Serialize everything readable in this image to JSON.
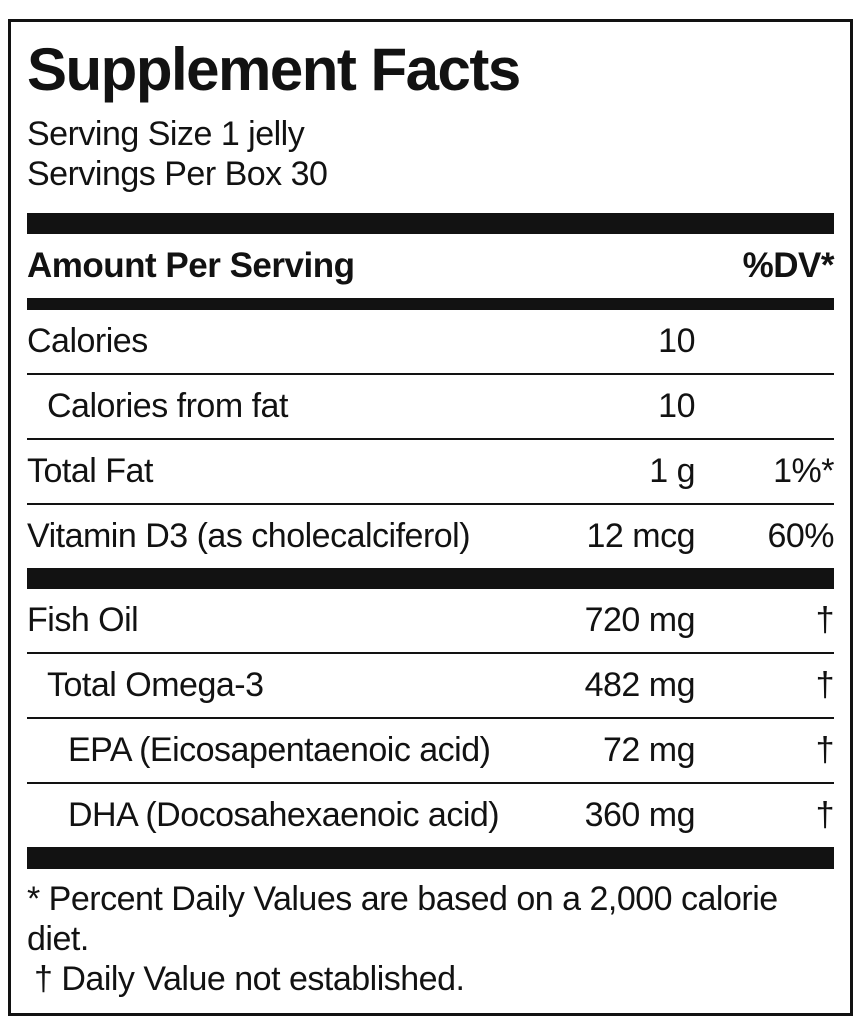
{
  "label": {
    "title": "Supplement Facts",
    "serving_size": "Serving Size 1 jelly",
    "servings_per_box": "Servings Per Box 30",
    "column_header": {
      "amount_per_serving": "Amount Per Serving",
      "percent_dv": "%DV*"
    },
    "rows": [
      {
        "name": "Calories",
        "amount": "10",
        "dv": "",
        "indent": 0
      },
      {
        "name": "Calories from fat",
        "amount": "10",
        "dv": "",
        "indent": 1
      },
      {
        "name": "Total Fat",
        "amount": "1 g",
        "dv": "1%*",
        "indent": 0
      },
      {
        "name": "Vitamin D3 (as cholecalciferol)",
        "amount": "12 mcg",
        "dv": "60%",
        "indent": 0
      },
      {
        "name": "Fish Oil",
        "amount": "720 mg",
        "dv": "†",
        "indent": 0
      },
      {
        "name": "Total Omega-3",
        "amount": "482 mg",
        "dv": "†",
        "indent": 1
      },
      {
        "name": "EPA (Eicosapentaenoic acid)",
        "amount": "72 mg",
        "dv": "†",
        "indent": 2
      },
      {
        "name": "DHA (Docosahexaenoic acid)",
        "amount": "360 mg",
        "dv": "†",
        "indent": 2
      }
    ],
    "footnotes": {
      "percent_dv": "* Percent Daily Values are based on a 2,000 calorie diet.",
      "dagger": "† Daily Value not established."
    },
    "colors": {
      "ink": "#121212",
      "background": "#ffffff"
    }
  }
}
